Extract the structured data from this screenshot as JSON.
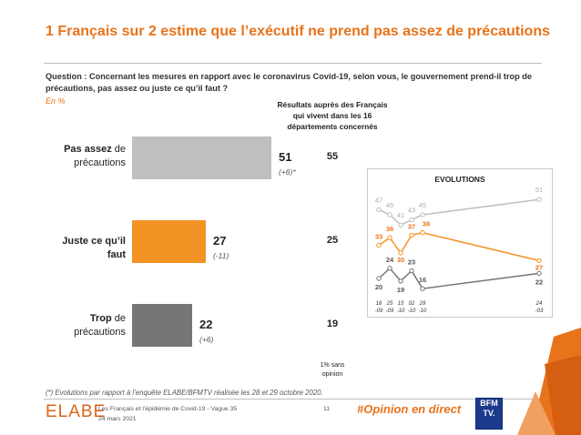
{
  "title": "1 Français sur 2 estime que l’exécutif ne prend pas assez de précautions",
  "question": "Question : Concernant les mesures en rapport avec le coronavirus Covid-19, selon vous, le gouvernement prend-il trop de précautions, pas assez ou juste ce qu’il faut ?",
  "unit": "En %",
  "subgroup_header": "Résultats auprès des Français qui vivent dans les 16 départements concernés",
  "items": [
    {
      "label_bold": "Pas assez",
      "label_rest": " de précautions",
      "value": "51",
      "change": "(+6)*",
      "subgroup": "55"
    },
    {
      "label_bold": "Juste ce qu’il faut",
      "label_rest": "",
      "value": "27",
      "change": "(-11)",
      "subgroup": "25"
    },
    {
      "label_bold": "Trop",
      "label_rest": " de précautions",
      "value": "22",
      "change": "(+6)",
      "subgroup": "19"
    }
  ],
  "nonresponse": "1% sans opinion",
  "evolutions_title": "EVOLUTIONS",
  "footnote": "(*) Evolutions par rapport à l’enquête ELABE/BFMTV réalisée les 28 et 29 octobre 2020.",
  "footer": {
    "logo": "ELABE",
    "study": "Les Français et l’épidémie de Covid-19 - Vague 35",
    "date": "24 mars 2021",
    "page": "11",
    "hashtag": "#Opinion en direct",
    "bfm_line1": "BFM",
    "bfm_line2": "TV."
  },
  "colors": {
    "pas_assez": "#bfbfbf",
    "juste": "#f39325",
    "trop": "#767676",
    "accent": "#e8731a"
  },
  "chart_data": [
    {
      "type": "bar",
      "orientation": "horizontal",
      "categories": [
        "Pas assez de précautions",
        "Juste ce qu’il faut",
        "Trop de précautions"
      ],
      "values": [
        51,
        27,
        22
      ],
      "xlim": [
        0,
        100
      ]
    },
    {
      "type": "line",
      "title": "EVOLUTIONS",
      "x": [
        "16 -09",
        "25 -09",
        "15 -10",
        "02 -10",
        "29 -10",
        "24 -03"
      ],
      "series": [
        {
          "name": "Pas assez de précautions",
          "color": "#bfbfbf",
          "values": [
            47,
            45,
            41,
            43,
            45,
            51
          ]
        },
        {
          "name": "Juste ce qu’il faut",
          "color": "#f39325",
          "values": [
            33,
            36,
            30,
            37,
            38,
            27
          ]
        },
        {
          "name": "Trop de précautions",
          "color": "#767676",
          "values": [
            20,
            24,
            19,
            23,
            16,
            22
          ]
        }
      ]
    }
  ]
}
